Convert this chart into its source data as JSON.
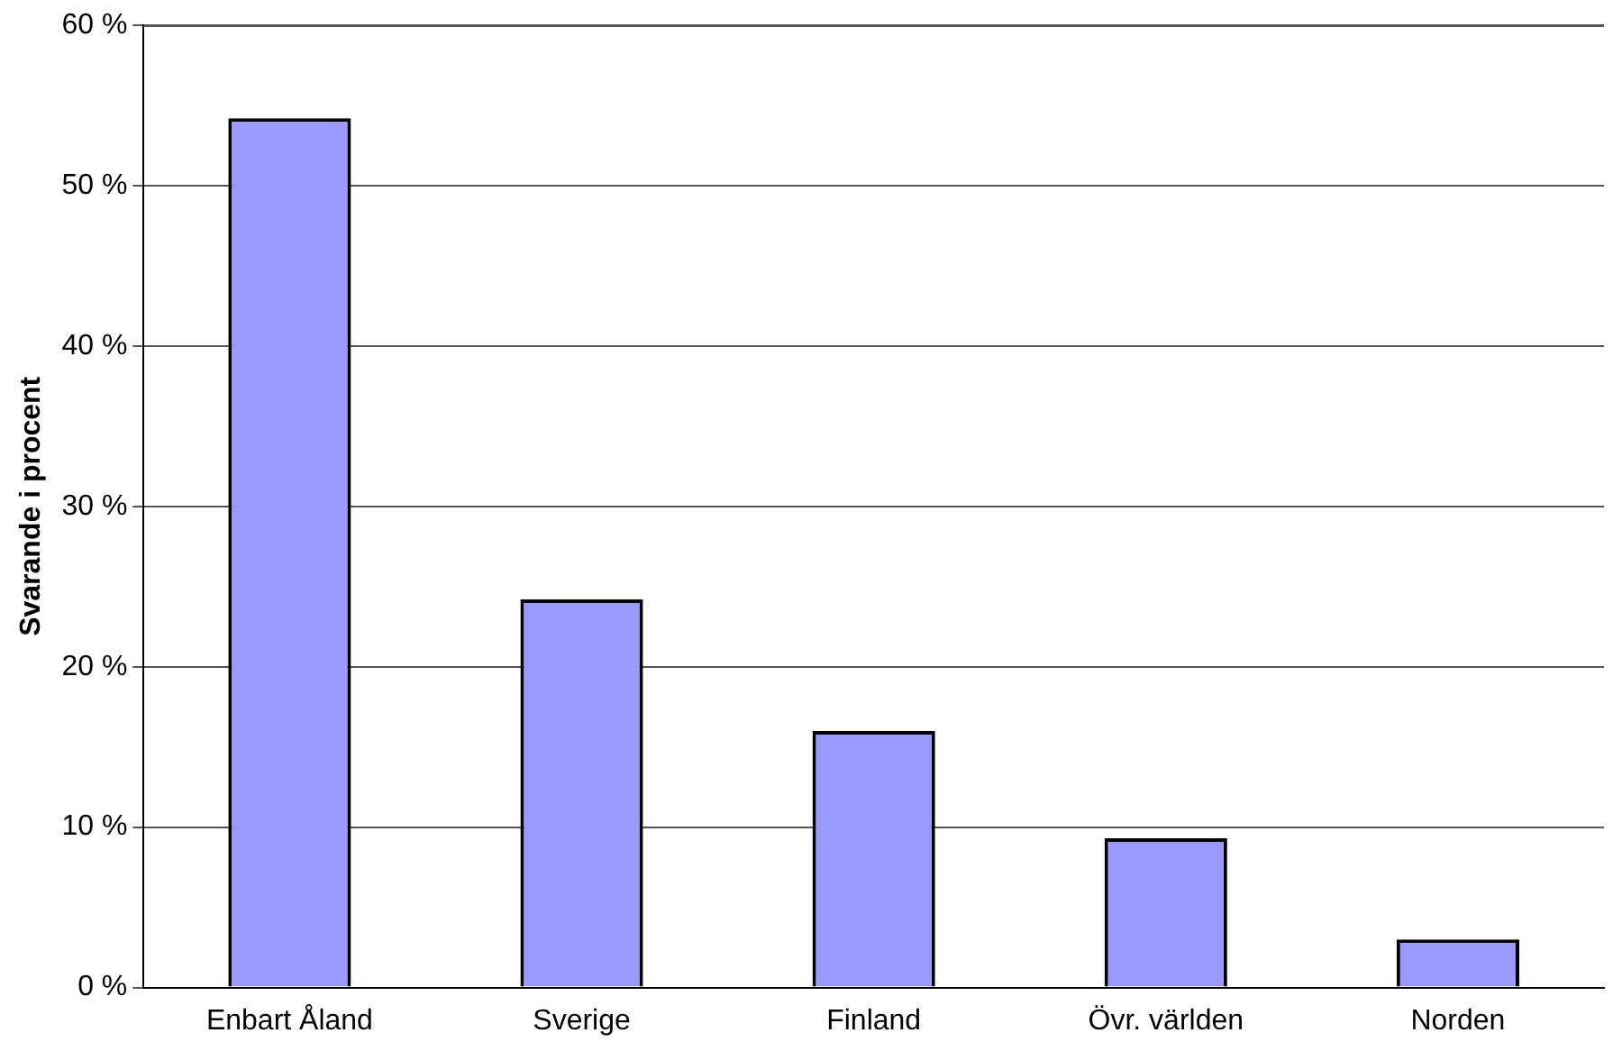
{
  "chart_data": {
    "type": "bar",
    "ylabel": "Svarande i procent",
    "categories": [
      "Enbart Åland",
      "Sverige",
      "Finland",
      "Övr. världen",
      "Norden"
    ],
    "values": [
      54.2,
      24.2,
      16.0,
      9.3,
      3.0
    ],
    "color": "#9999ff",
    "ylim": [
      0,
      60
    ],
    "yticks": [
      {
        "value": 0,
        "label": "0 %"
      },
      {
        "value": 10,
        "label": "10 %"
      },
      {
        "value": 20,
        "label": "20 %"
      },
      {
        "value": 30,
        "label": "30 %"
      },
      {
        "value": 40,
        "label": "40 %"
      },
      {
        "value": 50,
        "label": "50 %"
      },
      {
        "value": 60,
        "label": "60 %"
      }
    ],
    "grid": "y"
  }
}
